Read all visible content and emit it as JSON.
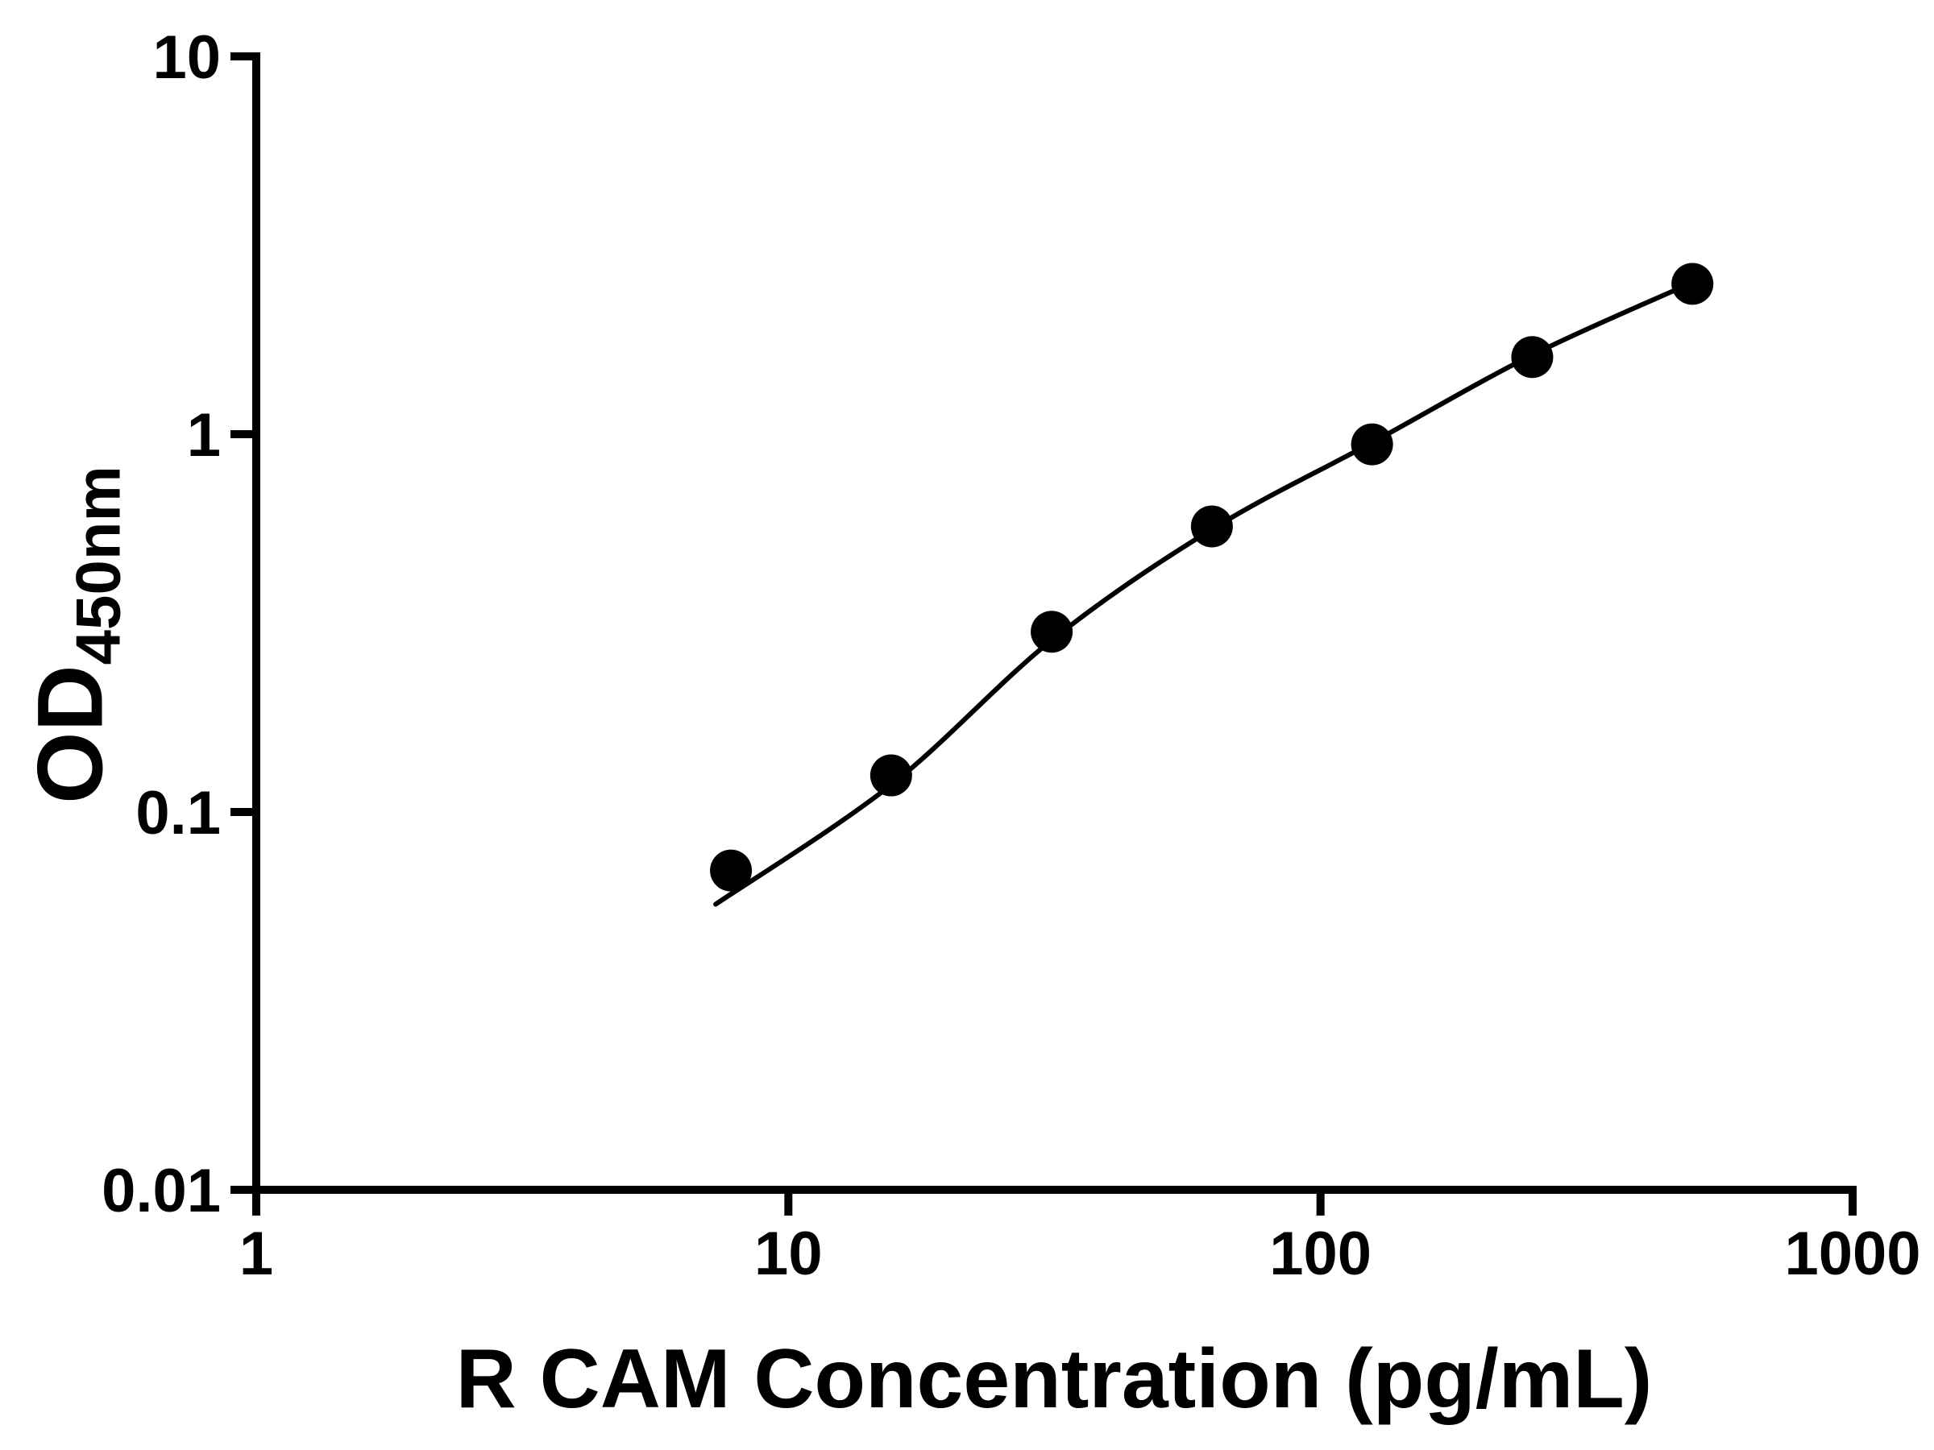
{
  "figure": {
    "background_color": "#ffffff",
    "axis_color": "#000000",
    "x_axis_label": "R CAM Concentration (pg/mL)",
    "y_axis_label_main": "OD",
    "y_axis_label_sub": "450nm"
  },
  "chart_data": {
    "type": "scatter",
    "title": "",
    "xlabel": "R CAM Concentration (pg/mL)",
    "ylabel": "OD450nm",
    "x_scale": "log",
    "y_scale": "log",
    "xlim": [
      1,
      1000
    ],
    "ylim": [
      0.01,
      10
    ],
    "x_ticks": [
      1,
      10,
      100,
      1000
    ],
    "x_tick_labels": [
      "1",
      "10",
      "100",
      "1000"
    ],
    "y_ticks": [
      0.01,
      0.1,
      1,
      10
    ],
    "y_tick_labels": [
      "0.01",
      "0.1",
      "1",
      "10"
    ],
    "grid": false,
    "legend_position": "none",
    "marker_color": "#000000",
    "line_color": "#000000",
    "series": [
      {
        "name": "standard-points",
        "kind": "scatter",
        "marker": "filled-circle",
        "color": "#000000",
        "x": [
          7.8,
          15.6,
          31.25,
          62.5,
          125,
          250,
          500
        ],
        "y": [
          0.07,
          0.125,
          0.3,
          0.57,
          0.94,
          1.6,
          2.5
        ]
      },
      {
        "name": "fit-curve",
        "kind": "line",
        "color": "#000000",
        "x": [
          7.3,
          15.6,
          31.25,
          62.5,
          125,
          250,
          500
        ],
        "y": [
          0.057,
          0.118,
          0.285,
          0.56,
          0.95,
          1.62,
          2.52
        ]
      }
    ]
  }
}
